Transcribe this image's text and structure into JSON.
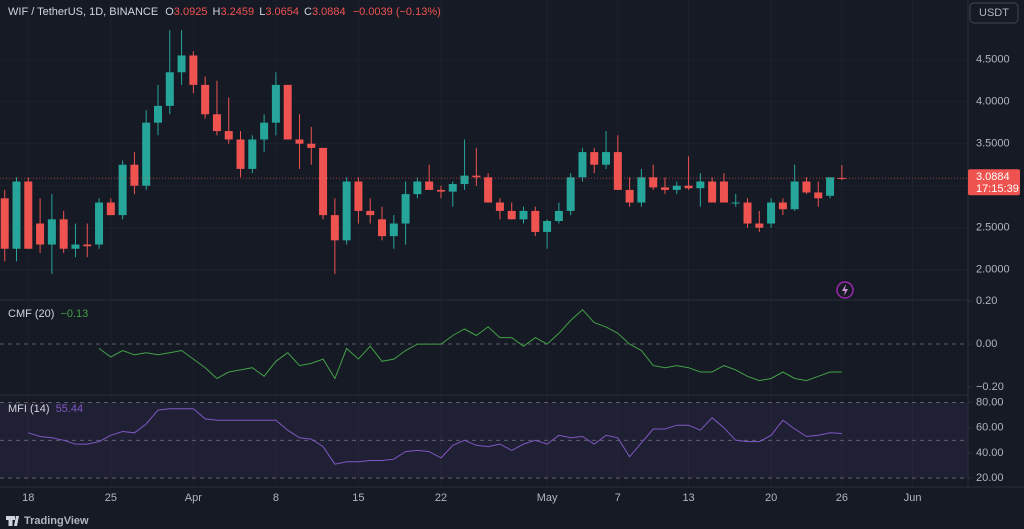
{
  "header": {
    "symbol": "WIF / TetherUS, 1D, BINANCE",
    "o_label": "O",
    "open": "3.0925",
    "h_label": "H",
    "high": "3.2459",
    "l_label": "L",
    "low": "3.0654",
    "c_label": "C",
    "close": "3.0884",
    "change": "−0.0039 (−0.13%)",
    "currency": "USDT",
    "price_tag": "3.0884",
    "countdown": "17:15:39",
    "brand": "TradingView"
  },
  "chart_data": [
    {
      "type": "candlestick",
      "open": [
        2.85,
        2.25,
        3.05,
        2.55,
        2.3,
        2.6,
        2.25,
        2.3,
        2.3,
        2.8,
        2.65,
        3.25,
        3.0,
        3.75,
        3.95,
        4.35,
        4.55,
        4.2,
        3.85,
        3.65,
        3.55,
        3.2,
        3.55,
        3.75,
        4.2,
        3.55,
        3.5,
        3.45,
        2.65,
        2.35,
        3.05,
        2.7,
        2.6,
        2.4,
        2.55,
        2.9,
        3.05,
        2.95,
        2.93,
        3.02,
        3.12,
        3.1,
        2.8,
        2.7,
        2.6,
        2.7,
        2.45,
        2.58,
        2.7,
        3.1,
        3.4,
        3.25,
        3.4,
        2.95,
        2.8,
        3.1,
        2.98,
        2.95,
        3.0,
        2.97,
        3.05,
        3.05,
        2.8,
        2.8,
        2.55,
        2.55,
        2.8,
        2.72,
        3.05,
        2.92,
        2.88,
        3.0925
      ],
      "high": [
        2.95,
        3.1,
        3.1,
        2.85,
        2.9,
        2.7,
        2.55,
        2.55,
        2.85,
        2.85,
        3.3,
        3.4,
        3.9,
        4.2,
        4.85,
        4.85,
        4.6,
        4.3,
        4.25,
        4.05,
        3.65,
        3.6,
        3.85,
        4.35,
        4.2,
        3.85,
        3.7,
        3.45,
        2.85,
        3.1,
        3.1,
        2.85,
        2.75,
        2.65,
        3.05,
        3.1,
        3.25,
        3.0,
        3.05,
        3.55,
        3.45,
        3.15,
        2.85,
        2.8,
        2.75,
        2.75,
        2.6,
        2.8,
        3.15,
        3.45,
        3.45,
        3.65,
        3.6,
        3.1,
        3.2,
        3.25,
        3.1,
        3.05,
        3.35,
        3.15,
        3.1,
        3.15,
        2.9,
        2.85,
        2.7,
        2.85,
        2.85,
        3.25,
        3.1,
        3.05,
        3.1,
        3.2459
      ],
      "low": [
        2.1,
        2.1,
        2.25,
        2.2,
        1.95,
        2.2,
        2.15,
        2.15,
        2.25,
        2.65,
        2.6,
        2.9,
        2.95,
        3.6,
        3.85,
        4.2,
        4.1,
        3.8,
        3.6,
        3.5,
        3.1,
        3.15,
        3.4,
        3.6,
        3.55,
        3.2,
        3.25,
        2.6,
        1.95,
        2.3,
        2.55,
        2.55,
        2.35,
        2.25,
        2.3,
        2.85,
        2.95,
        2.85,
        2.75,
        2.95,
        3.0,
        2.8,
        2.6,
        2.6,
        2.55,
        2.4,
        2.25,
        2.55,
        2.65,
        3.05,
        3.15,
        3.2,
        2.95,
        2.75,
        2.75,
        2.95,
        2.9,
        2.9,
        2.95,
        2.75,
        2.8,
        2.8,
        2.75,
        2.5,
        2.45,
        2.5,
        2.65,
        2.7,
        2.9,
        2.75,
        2.85,
        3.0654
      ],
      "close": [
        2.25,
        3.05,
        2.25,
        2.3,
        2.6,
        2.25,
        2.3,
        2.28,
        2.8,
        2.65,
        3.25,
        3.0,
        3.75,
        3.95,
        4.35,
        4.55,
        4.2,
        3.85,
        3.65,
        3.55,
        3.2,
        3.55,
        3.75,
        4.2,
        3.55,
        3.5,
        3.45,
        2.65,
        2.35,
        3.05,
        2.7,
        2.65,
        2.4,
        2.55,
        2.9,
        3.05,
        2.95,
        2.93,
        3.02,
        3.12,
        3.1,
        2.8,
        2.7,
        2.6,
        2.7,
        2.45,
        2.58,
        2.7,
        3.1,
        3.4,
        3.25,
        3.4,
        2.95,
        2.8,
        3.1,
        2.98,
        2.95,
        3.0,
        2.97,
        3.05,
        2.8,
        2.8,
        2.8,
        2.55,
        2.5,
        2.8,
        2.72,
        3.05,
        2.92,
        2.85,
        3.1,
        3.0884
      ],
      "up_color": "#26a69a",
      "down_color": "#ef5350",
      "ylim": [
        1.64,
        5.21
      ],
      "yticks": [
        {
          "value": 2,
          "label": "2.0000"
        },
        {
          "value": 2.5,
          "label": "2.5000"
        },
        {
          "value": 3,
          "label": "3.0000"
        },
        {
          "value": 3.5,
          "label": "3.5000"
        },
        {
          "value": 4,
          "label": "4.0000"
        },
        {
          "value": 4.5,
          "label": "4.5000"
        }
      ],
      "xlim": [
        -0.4,
        81.7
      ],
      "xticks": [
        {
          "value": 2,
          "label": "18"
        },
        {
          "value": 9,
          "label": "25"
        },
        {
          "value": 16,
          "label": "Apr"
        },
        {
          "value": 23,
          "label": "8"
        },
        {
          "value": 30,
          "label": "15"
        },
        {
          "value": 37,
          "label": "22"
        },
        {
          "value": 46,
          "label": "May"
        },
        {
          "value": 52,
          "label": "7"
        },
        {
          "value": 58,
          "label": "13"
        },
        {
          "value": 65,
          "label": "20"
        },
        {
          "value": 71,
          "label": "26"
        },
        {
          "value": 77,
          "label": "Jun"
        }
      ],
      "grid": true
    },
    {
      "type": "line",
      "title": "CMF (20)",
      "current": "−0.13",
      "color": "#43a047",
      "values": [
        null,
        null,
        null,
        null,
        null,
        null,
        null,
        null,
        -0.02,
        -0.06,
        -0.03,
        -0.05,
        -0.04,
        -0.05,
        -0.04,
        -0.03,
        -0.07,
        -0.11,
        -0.16,
        -0.13,
        -0.12,
        -0.11,
        -0.15,
        -0.08,
        -0.04,
        -0.1,
        -0.09,
        -0.07,
        -0.16,
        -0.02,
        -0.07,
        -0.01,
        -0.08,
        -0.07,
        -0.03,
        0.0,
        0.0,
        0.0,
        0.04,
        0.07,
        0.04,
        0.08,
        0.03,
        0.03,
        -0.01,
        0.03,
        0.0,
        0.05,
        0.11,
        0.16,
        0.1,
        0.08,
        0.05,
        0.0,
        -0.03,
        -0.1,
        -0.11,
        -0.1,
        -0.11,
        -0.13,
        -0.13,
        -0.1,
        -0.12,
        -0.15,
        -0.17,
        -0.16,
        -0.13,
        -0.16,
        -0.17,
        -0.15,
        -0.13,
        -0.13
      ],
      "ylim": [
        -0.237,
        0.205
      ],
      "yticks": [
        {
          "value": -0.2,
          "label": "−0.20"
        },
        {
          "value": 0,
          "label": "0.00"
        },
        {
          "value": 0.2,
          "label": "0.20"
        }
      ],
      "levels": [
        0
      ]
    },
    {
      "type": "line",
      "title": "MFI (14)",
      "current": "55.44",
      "color": "#7e57c2",
      "values": [
        null,
        null,
        56,
        53,
        52,
        50,
        47,
        47,
        49,
        54,
        57,
        56,
        63,
        74,
        75,
        75,
        75,
        67,
        66,
        66,
        66,
        66,
        66,
        66,
        58,
        52,
        51,
        45,
        31,
        33,
        33,
        34,
        34,
        35,
        41,
        42,
        41,
        36,
        46,
        50,
        46,
        45,
        47,
        42,
        47,
        50,
        47,
        54,
        52,
        53,
        47,
        54,
        52,
        37,
        48,
        59,
        59,
        62,
        62,
        58,
        68,
        60,
        50,
        49,
        49,
        54,
        66,
        59,
        53,
        54,
        56,
        55.44
      ],
      "ylim": [
        14.5,
        86
      ],
      "yticks": [
        {
          "value": 20,
          "label": "20.00"
        },
        {
          "value": 40,
          "label": "40.00"
        },
        {
          "value": 60,
          "label": "60.00"
        },
        {
          "value": 80,
          "label": "80.00"
        }
      ],
      "levels": [
        80,
        50,
        20
      ],
      "band": [
        20,
        80
      ]
    }
  ]
}
